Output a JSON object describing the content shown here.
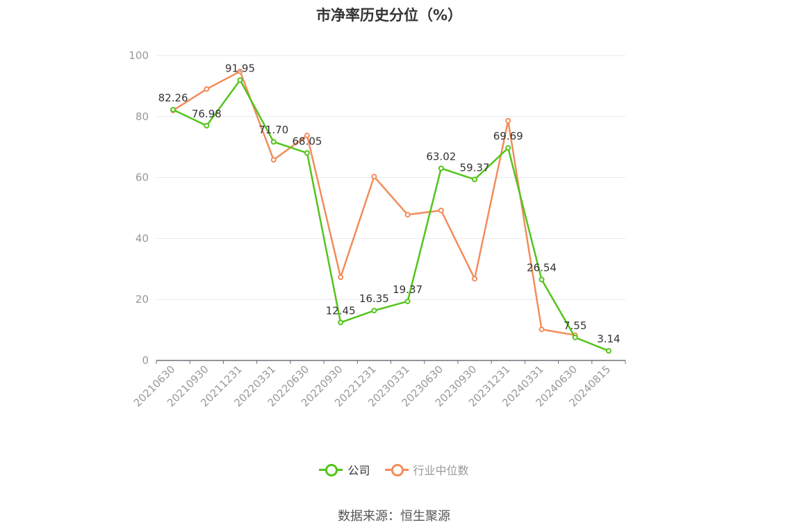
{
  "chart_data": {
    "type": "line",
    "title": "市净率历史分位（%）",
    "categories": [
      "20210630",
      "20210930",
      "20211231",
      "20220331",
      "20220630",
      "20220930",
      "20221231",
      "20230331",
      "20230630",
      "20230930",
      "20231231",
      "20240331",
      "20240630",
      "20240815"
    ],
    "ylim": [
      0,
      100
    ],
    "yticks": [
      0,
      20,
      40,
      60,
      80,
      100
    ],
    "grid": true,
    "legend_position": "bottom",
    "series": [
      {
        "name": "公司",
        "color": "#52c41a",
        "values": [
          82.26,
          76.98,
          91.95,
          71.7,
          68.05,
          12.45,
          16.35,
          19.37,
          63.02,
          59.37,
          69.69,
          26.54,
          7.55,
          3.14
        ],
        "labels": [
          "82.26",
          "76.98",
          "91.95",
          "71.70",
          "68.05",
          "12.45",
          "16.35",
          "19.37",
          "63.02",
          "59.37",
          "69.69",
          "26.54",
          "7.55",
          "3.14"
        ]
      },
      {
        "name": "行业中位数",
        "color": "#f28c5a",
        "values": [
          82.0,
          89.0,
          94.8,
          65.8,
          73.8,
          27.3,
          60.3,
          47.8,
          49.2,
          26.8,
          78.6,
          10.2,
          8.3,
          null
        ]
      }
    ]
  },
  "legend": {
    "company": "公司",
    "industry": "行业中位数"
  },
  "source": "数据来源：恒生聚源"
}
